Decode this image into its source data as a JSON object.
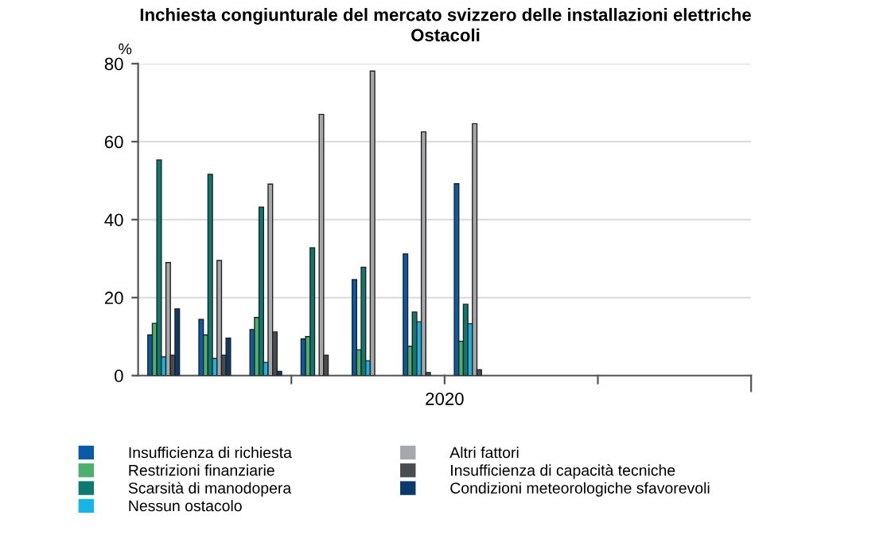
{
  "chart_data": {
    "type": "bar",
    "title": "Inchiesta congiunturale del mercato svizzero delle installazioni elettriche\nOstacoli",
    "ylabel": "%",
    "xlabel": "2020",
    "categories": [
      null,
      null,
      null,
      null,
      null,
      null,
      null,
      null,
      null,
      null,
      null,
      null
    ],
    "series": [
      {
        "name": "Insufficienza di richiesta",
        "color": "#0a5aa8",
        "values": [
          10.4,
          14.4,
          11.8,
          9.4,
          24.6,
          31.2,
          49.2,
          null,
          null,
          null,
          null,
          null
        ]
      },
      {
        "name": "Restrizioni finanziarie",
        "color": "#4caf6e",
        "values": [
          13.4,
          10.4,
          14.9,
          10.0,
          6.6,
          7.5,
          8.8,
          null,
          null,
          null,
          null,
          null
        ]
      },
      {
        "name": "Scarsità di manodopera",
        "color": "#0e7a6e",
        "values": [
          55.3,
          51.6,
          43.2,
          32.8,
          27.8,
          16.3,
          18.3,
          null,
          null,
          null,
          null,
          null
        ]
      },
      {
        "name": "Nessun ostacolo",
        "color": "#19b4e6",
        "values": [
          4.8,
          4.4,
          3.4,
          null,
          3.8,
          13.8,
          13.3,
          null,
          null,
          null,
          null,
          null
        ]
      },
      {
        "name": "Altri fattori",
        "color": "#a6a8aa",
        "values": [
          29.0,
          29.5,
          49.1,
          67.0,
          78.1,
          62.5,
          64.6,
          null,
          null,
          null,
          null,
          null
        ]
      },
      {
        "name": "Insufficienza di capacità tecniche",
        "color": "#4a4d4f",
        "values": [
          5.2,
          5.2,
          11.2,
          5.2,
          null,
          0.8,
          1.5,
          null,
          null,
          null,
          null,
          null
        ]
      },
      {
        "name": "Condizioni meteorologiche sfavorevoli",
        "color": "#0b3a6b",
        "values": [
          17.1,
          9.6,
          1.1,
          null,
          null,
          null,
          null,
          null,
          null,
          null,
          null,
          null
        ]
      }
    ],
    "ylim": [
      0,
      80
    ],
    "yticks": [
      0,
      20,
      40,
      60,
      80
    ],
    "grid": "y",
    "legend": "bottom"
  }
}
